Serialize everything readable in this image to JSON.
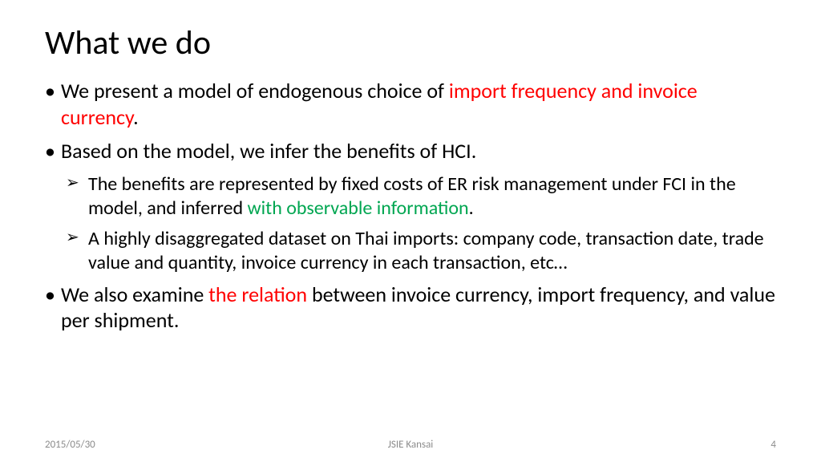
{
  "title": "What we do",
  "bullets": {
    "b1_a": "We present a model of endogenous choice of ",
    "b1_red": "import frequency and invoice currency",
    "b1_b": ".",
    "b2": "Based on the model, we infer the benefits of HCI.",
    "b2s1_a": "The benefits are represented by fixed costs of ER risk management under FCI in the model, and inferred ",
    "b2s1_green": "with observable information",
    "b2s1_b": ".",
    "b2s2": "A highly disaggregated dataset on Thai imports: company code, transaction date, trade value and quantity, invoice currency in each transaction, etc…",
    "b3_a": "We also examine ",
    "b3_red": "the relation",
    "b3_b": " between invoice currency, import frequency, and value per shipment."
  },
  "footer": {
    "date": "2015/05/30",
    "center": "JSIE Kansai",
    "page": "4"
  },
  "colors": {
    "red": "#ff0000",
    "green": "#00a651",
    "text": "#000000",
    "footer": "#8c8c8c",
    "background": "#ffffff"
  }
}
